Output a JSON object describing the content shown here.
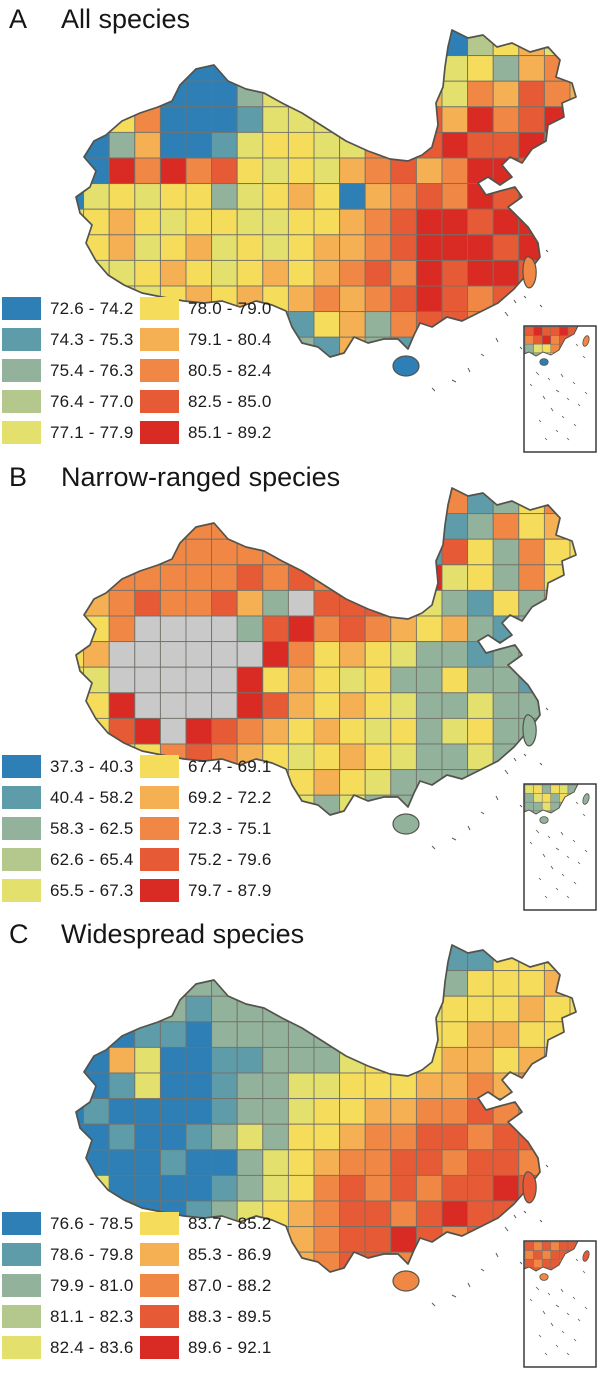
{
  "figure": {
    "type": "gridded-choropleth-maps",
    "region": "China",
    "panel_count": 3
  },
  "palette": {
    "0": "#2e7fb5",
    "1": "#5f9ca9",
    "2": "#92b29b",
    "3": "#b4c78c",
    "4": "#e3e06d",
    "5": "#f5dd5b",
    "6": "#f4b052",
    "7": "#f08744",
    "8": "#e75a36",
    "9": "#da2a24",
    "x": "#c9c9c9"
  },
  "map_style": {
    "cell_border_color": "#72726a",
    "outline_color": "#53534c",
    "inset_border_color": "#2e2e2e",
    "no_data_color": "#c9c9c9"
  },
  "panels": [
    {
      "label": "A",
      "title": "All species",
      "legend": [
        {
          "range": "72.6 - 74.2",
          "class": "0"
        },
        {
          "range": "74.3 - 75.3",
          "class": "1"
        },
        {
          "range": "75.4 - 76.3",
          "class": "2"
        },
        {
          "range": "76.4 - 77.0",
          "class": "3"
        },
        {
          "range": "77.1 - 77.9",
          "class": "4"
        },
        {
          "range": "78.0 - 79.0",
          "class": "5"
        },
        {
          "range": "79.1 - 80.4",
          "class": "6"
        },
        {
          "range": "80.5 - 82.4",
          "class": "7"
        },
        {
          "range": "82.5 - 85.0",
          "class": "8"
        },
        {
          "range": "85.1 - 89.2",
          "class": "9"
        }
      ],
      "islands": {
        "hainan": "0",
        "taiwan": "7"
      },
      "grid": [
        "444444444444441035644",
        "444100024444451452674",
        "241100024444456476876",
        "125700014444678697898",
        "102600145544768988987",
        "009797854546786799898",
        "045455245650678798988",
        "456545544556789989988",
        "556456454566789998998",
        "444565456567879899888",
        "444456565676789878888",
        "444445652156278877888",
        "444444452216217877888",
        "444444444442152788888"
      ],
      "inset_grid": [
        "898898",
        "789788",
        "245788",
        "124522"
      ]
    },
    {
      "label": "B",
      "title": "Narrow-ranged species",
      "legend": [
        {
          "range": "37.3 - 40.3",
          "class": "0"
        },
        {
          "range": "40.4 - 58.2",
          "class": "1"
        },
        {
          "range": "58.3 - 62.5",
          "class": "2"
        },
        {
          "range": "62.6 - 65.4",
          "class": "3"
        },
        {
          "range": "65.5 - 67.3",
          "class": "4"
        },
        {
          "range": "67.4 - 69.1",
          "class": "5"
        },
        {
          "range": "69.2 - 72.2",
          "class": "6"
        },
        {
          "range": "72.3 - 75.1",
          "class": "7"
        },
        {
          "range": "75.2 - 79.6",
          "class": "8"
        },
        {
          "range": "79.7 - 87.9",
          "class": "9"
        }
      ],
      "islands": {
        "hainan": "2",
        "taiwan": "2"
      },
      "grid": [
        "777777777777721712577",
        "777777777777720127567",
        "767777777777721852755",
        "667777787877569452757",
        "767877862x88854215265",
        "657xxxx28978765621255",
        "56xxxxxx9756542212252",
        "54xxxxx95654522522122",
        "559xxxx98656542242222",
        "5589x9876565452452222",
        "555578765456542242222",
        "555557654565422222222",
        "555555552424222222222",
        "555555555552222222222"
      ],
      "inset_grid": [
        "452542",
        "245255",
        "224222",
        "222222"
      ]
    },
    {
      "label": "C",
      "title": "Widespread species",
      "legend": [
        {
          "range": "76.6 - 78.5",
          "class": "0"
        },
        {
          "range": "78.6 - 79.8",
          "class": "1"
        },
        {
          "range": "79.9 - 81.0",
          "class": "2"
        },
        {
          "range": "81.1 - 82.3",
          "class": "3"
        },
        {
          "range": "82.4 - 83.6",
          "class": "4"
        },
        {
          "range": "83.7 - 85.2",
          "class": "5"
        },
        {
          "range": "85.3 - 86.9",
          "class": "6"
        },
        {
          "range": "87.0 - 88.2",
          "class": "7"
        },
        {
          "range": "88.3 - 89.5",
          "class": "8"
        },
        {
          "range": "89.6 - 92.1",
          "class": "9"
        }
      ],
      "islands": {
        "hainan": "7",
        "taiwan": "8"
      },
      "grid": [
        "555555555555552115555",
        "222112222222221255565",
        "121121222222224555655",
        "210110222222455566556",
        "106400112224555665665",
        "001400122445556676766",
        "010000122455667787788",
        "001001242556778878898",
        "100010024567788788788",
        "140000124578787889888",
        "450001245678878988888",
        "555000245678898788888",
        "555555545678878888888",
        "555555555577878888888"
      ],
      "inset_grid": [
        "878788",
        "787888",
        "878877",
        "788888"
      ]
    }
  ]
}
